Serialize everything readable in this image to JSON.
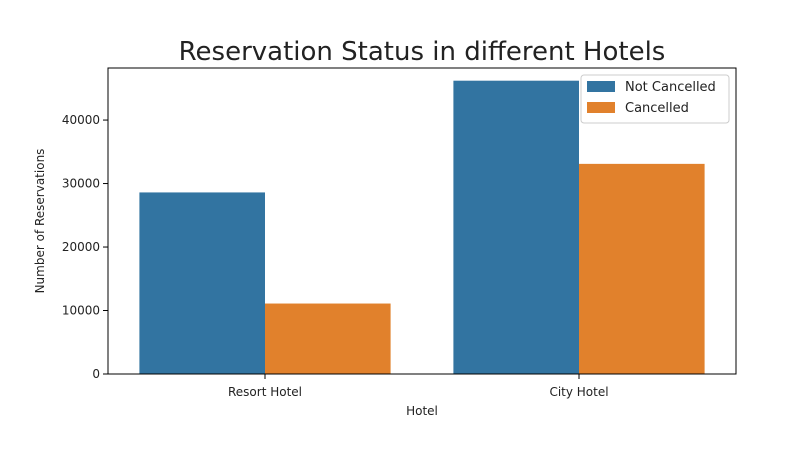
{
  "chart_data": {
    "type": "bar",
    "title": "Reservation Status in different Hotels",
    "xlabel": "Hotel",
    "ylabel": "Number of Reservations",
    "categories": [
      "Resort Hotel",
      "City Hotel"
    ],
    "series": [
      {
        "name": "Not Cancelled",
        "values": [
          28600,
          46200
        ],
        "color": "#3274a1"
      },
      {
        "name": "Cancelled",
        "values": [
          11100,
          33100
        ],
        "color": "#e1812c"
      }
    ],
    "ylim": [
      0,
      48200
    ],
    "yticks": [
      0,
      10000,
      20000,
      30000,
      40000
    ],
    "ytick_labels": [
      "0",
      "10000",
      "20000",
      "30000",
      "40000"
    ],
    "grid": false,
    "legend_position": "top-right"
  }
}
